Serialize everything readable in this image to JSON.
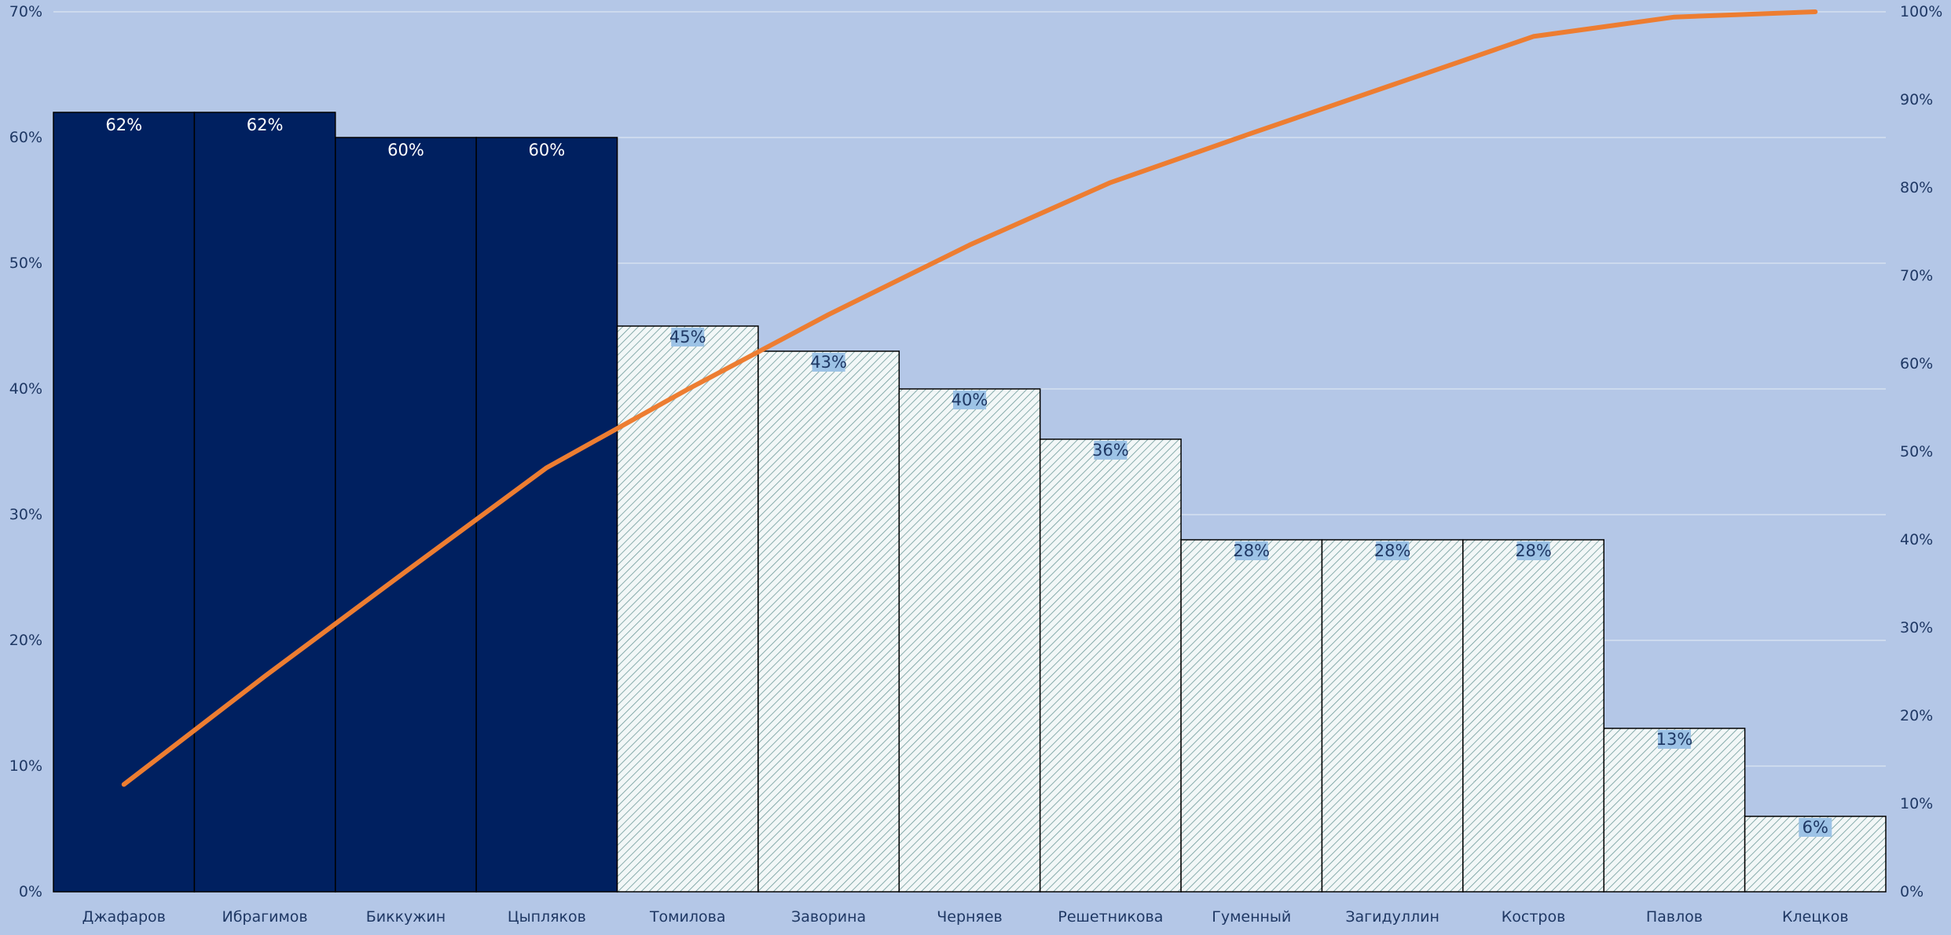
{
  "chart_data": {
    "type": "bar",
    "title": "",
    "xlabel": "",
    "ylabel": "",
    "categories": [
      "Джафаров",
      "Ибрагимов",
      "Биккужин",
      "Цыпляков",
      "Томилова",
      "Заворина",
      "Черняев",
      "Решетникова",
      "Гуменный",
      "Загидуллин",
      "Костров",
      "Павлов",
      "Клецков"
    ],
    "series": [
      {
        "chart_type": "bar",
        "axis": "left",
        "values": [
          62,
          62,
          60,
          60,
          45,
          43,
          40,
          36,
          28,
          28,
          28,
          13,
          6
        ],
        "labels": [
          "62%",
          "62%",
          "60%",
          "60%",
          "45%",
          "43%",
          "40%",
          "36%",
          "28%",
          "28%",
          "28%",
          "13%",
          "6%"
        ],
        "highlighted_count": 4
      },
      {
        "chart_type": "line",
        "axis": "right",
        "values": [
          12.2,
          24.5,
          36.4,
          48.2,
          57.1,
          65.6,
          73.5,
          80.6,
          86.2,
          91.7,
          97.2,
          99.4,
          100
        ]
      }
    ],
    "ylim": [
      0,
      70
    ],
    "y_ticks": [
      "0%",
      "10%",
      "20%",
      "30%",
      "40%",
      "50%",
      "60%",
      "70%"
    ],
    "y2lim": [
      0,
      100
    ],
    "y2_ticks": [
      "0%",
      "10%",
      "20%",
      "30%",
      "40%",
      "50%",
      "60%",
      "70%",
      "80%",
      "90%",
      "100%"
    ],
    "grid": true,
    "legend": "none",
    "colors": {
      "background": "#b4c7e7",
      "bar_highlight": "#002060",
      "bar_hatch_fill": "#f2f7f7",
      "bar_hatch_line": "#6e9a9a",
      "line": "#ed7d31",
      "gridline": "#d5e0f1",
      "text": "#1f3864"
    }
  }
}
